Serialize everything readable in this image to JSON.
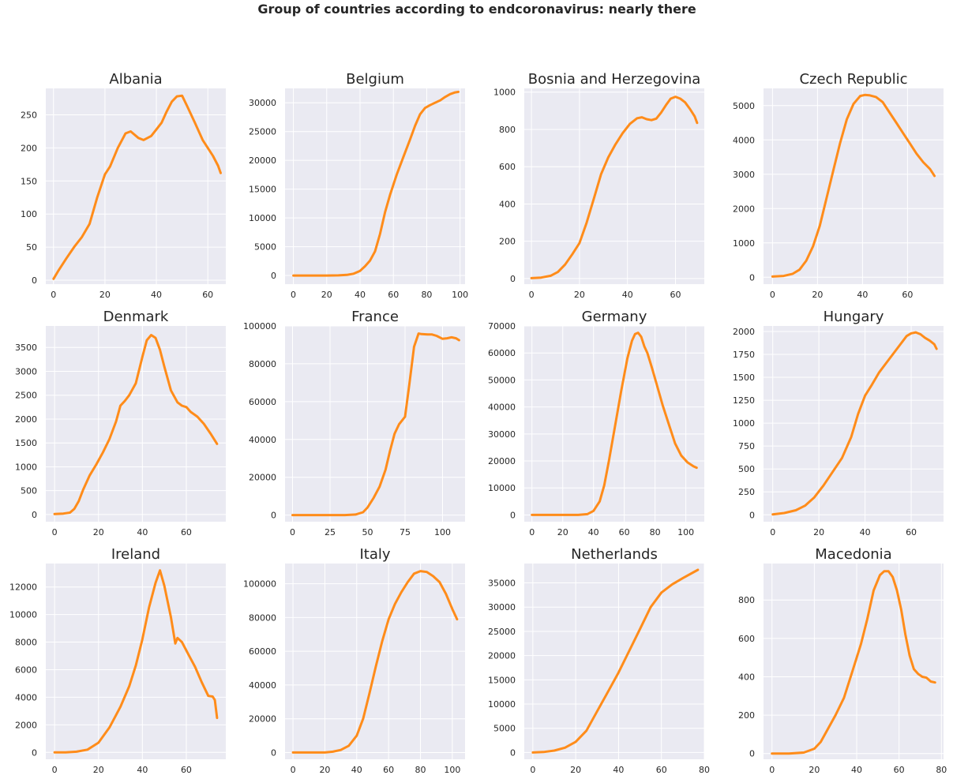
{
  "figure": {
    "title": "Group of countries according to endcoronavirus: nearly there",
    "background": "#ffffff",
    "axes_background": "#eaeaf2",
    "grid_color": "#ffffff",
    "line_color": "#ff8c1a"
  },
  "chart_data": [
    {
      "type": "line",
      "title": "Albania",
      "xlim": [
        -3,
        67
      ],
      "ylim": [
        -6,
        290
      ],
      "xticks": [
        0,
        20,
        40,
        60
      ],
      "yticks": [
        0,
        50,
        100,
        150,
        200,
        250
      ],
      "x": [
        0,
        2,
        5,
        8,
        11,
        14,
        17,
        20,
        22,
        25,
        28,
        30,
        33,
        35,
        38,
        40,
        42,
        44,
        46,
        48,
        50,
        52,
        55,
        58,
        60,
        62,
        64,
        65
      ],
      "y": [
        2,
        15,
        33,
        50,
        65,
        85,
        125,
        160,
        172,
        200,
        222,
        225,
        215,
        212,
        218,
        228,
        238,
        255,
        270,
        278,
        279,
        263,
        238,
        212,
        200,
        188,
        173,
        162
      ]
    },
    {
      "type": "line",
      "title": "Belgium",
      "xlim": [
        -5,
        103
      ],
      "ylim": [
        -1500,
        32500
      ],
      "xticks": [
        0,
        20,
        40,
        60,
        80,
        100
      ],
      "yticks": [
        0,
        5000,
        10000,
        15000,
        20000,
        25000,
        30000
      ],
      "x": [
        0,
        20,
        27,
        32,
        36,
        40,
        43,
        46,
        49,
        52,
        55,
        58,
        62,
        66,
        70,
        73,
        76,
        79,
        82,
        85,
        88,
        91,
        94,
        97,
        99
      ],
      "y": [
        0,
        0,
        20,
        100,
        300,
        800,
        1600,
        2600,
        4200,
        7200,
        11000,
        14000,
        17500,
        20600,
        23600,
        26000,
        28000,
        29100,
        29600,
        30000,
        30400,
        31000,
        31500,
        31800,
        31900
      ]
    },
    {
      "type": "line",
      "title": "Bosnia and Herzegovina",
      "xlim": [
        -3,
        72
      ],
      "ylim": [
        -30,
        1020
      ],
      "xticks": [
        0,
        20,
        40,
        60
      ],
      "yticks": [
        0,
        200,
        400,
        600,
        800,
        1000
      ],
      "x": [
        0,
        4,
        8,
        11,
        14,
        17,
        20,
        23,
        26,
        29,
        32,
        35,
        38,
        41,
        44,
        46,
        48,
        50,
        52,
        54,
        56,
        58,
        60,
        62,
        64,
        66,
        68,
        69
      ],
      "y": [
        2,
        5,
        15,
        35,
        75,
        130,
        190,
        300,
        430,
        560,
        650,
        720,
        780,
        830,
        860,
        865,
        855,
        850,
        858,
        890,
        930,
        965,
        975,
        965,
        945,
        910,
        870,
        835
      ]
    },
    {
      "type": "line",
      "title": "Czech Republic",
      "xlim": [
        -4,
        76
      ],
      "ylim": [
        -200,
        5500
      ],
      "xticks": [
        0,
        20,
        40,
        60
      ],
      "yticks": [
        0,
        1000,
        2000,
        3000,
        4000,
        5000
      ],
      "x": [
        0,
        5,
        9,
        12,
        15,
        18,
        21,
        24,
        27,
        30,
        33,
        36,
        39,
        41,
        43,
        46,
        49,
        52,
        55,
        58,
        61,
        64,
        67,
        70,
        72
      ],
      "y": [
        20,
        40,
        100,
        220,
        480,
        900,
        1500,
        2300,
        3100,
        3900,
        4600,
        5050,
        5280,
        5310,
        5300,
        5250,
        5100,
        4800,
        4500,
        4200,
        3900,
        3600,
        3350,
        3150,
        2950
      ]
    },
    {
      "type": "line",
      "title": "Denmark",
      "xlim": [
        -4,
        78
      ],
      "ylim": [
        -150,
        3950
      ],
      "xticks": [
        0,
        20,
        40,
        60
      ],
      "yticks": [
        0,
        500,
        1000,
        1500,
        2000,
        2500,
        3000,
        3500
      ],
      "x": [
        0,
        4,
        7,
        9,
        11,
        13,
        16,
        19,
        22,
        25,
        28,
        30,
        32,
        34,
        37,
        40,
        42,
        44,
        46,
        48,
        50,
        53,
        56,
        58,
        60,
        62,
        65,
        68,
        71,
        74
      ],
      "y": [
        10,
        20,
        40,
        120,
        280,
        520,
        820,
        1050,
        1300,
        1580,
        1950,
        2280,
        2380,
        2500,
        2750,
        3300,
        3650,
        3760,
        3700,
        3450,
        3100,
        2600,
        2350,
        2280,
        2250,
        2150,
        2050,
        1900,
        1700,
        1480
      ]
    },
    {
      "type": "line",
      "title": "France",
      "xlim": [
        -5,
        115
      ],
      "ylim": [
        -3500,
        100000
      ],
      "xticks": [
        0,
        25,
        50,
        75,
        100
      ],
      "yticks": [
        0,
        20000,
        40000,
        60000,
        80000,
        100000
      ],
      "x": [
        0,
        35,
        42,
        47,
        50,
        54,
        58,
        62,
        65,
        68,
        71,
        75,
        78,
        81,
        84,
        86,
        90,
        93,
        96,
        100,
        103,
        106,
        109,
        111
      ],
      "y": [
        0,
        0,
        300,
        1500,
        4000,
        9000,
        15000,
        24000,
        34000,
        43000,
        48000,
        52000,
        70000,
        89000,
        96000,
        95700,
        95500,
        95500,
        94800,
        93200,
        93500,
        94000,
        93500,
        92500
      ]
    },
    {
      "type": "line",
      "title": "Germany",
      "xlim": [
        -5,
        112
      ],
      "ylim": [
        -2500,
        70000
      ],
      "xticks": [
        0,
        20,
        40,
        60,
        80,
        100
      ],
      "yticks": [
        0,
        10000,
        20000,
        30000,
        40000,
        50000,
        60000,
        70000
      ],
      "x": [
        0,
        30,
        36,
        40,
        44,
        47,
        50,
        54,
        58,
        62,
        65,
        67,
        69,
        71,
        73,
        75,
        78,
        81,
        85,
        89,
        93,
        97,
        101,
        105,
        107
      ],
      "y": [
        0,
        0,
        300,
        1500,
        5000,
        11000,
        20000,
        33000,
        46000,
        58000,
        64500,
        67000,
        67500,
        66000,
        62500,
        60000,
        54500,
        48500,
        40500,
        33500,
        26500,
        22000,
        19500,
        18000,
        17500
      ]
    },
    {
      "type": "line",
      "title": "Hungary",
      "xlim": [
        -4,
        74
      ],
      "ylim": [
        -75,
        2060
      ],
      "xticks": [
        0,
        20,
        40,
        60
      ],
      "yticks": [
        0,
        250,
        500,
        750,
        1000,
        1250,
        1500,
        1750,
        2000
      ],
      "x": [
        0,
        5,
        10,
        14,
        18,
        22,
        26,
        30,
        34,
        37,
        40,
        43,
        46,
        49,
        52,
        55,
        58,
        60,
        62,
        64,
        66,
        68,
        70,
        71
      ],
      "y": [
        5,
        20,
        50,
        100,
        190,
        320,
        470,
        620,
        850,
        1100,
        1300,
        1420,
        1550,
        1650,
        1750,
        1850,
        1950,
        1980,
        1990,
        1970,
        1930,
        1900,
        1860,
        1810
      ]
    },
    {
      "type": "line",
      "title": "Ireland",
      "xlim": [
        -4,
        78
      ],
      "ylim": [
        -500,
        13700
      ],
      "xticks": [
        0,
        20,
        40,
        60
      ],
      "yticks": [
        0,
        2000,
        4000,
        6000,
        8000,
        10000,
        12000
      ],
      "x": [
        0,
        5,
        10,
        15,
        20,
        25,
        30,
        34,
        37,
        40,
        43,
        46,
        48,
        50,
        53,
        55,
        56,
        58,
        61,
        64,
        67,
        70,
        72,
        73,
        74
      ],
      "y": [
        0,
        0,
        50,
        200,
        700,
        1800,
        3300,
        4800,
        6300,
        8200,
        10500,
        12300,
        13200,
        12100,
        9800,
        7900,
        8300,
        8000,
        7100,
        6200,
        5100,
        4100,
        4050,
        3800,
        2500
      ]
    },
    {
      "type": "line",
      "title": "Italy",
      "xlim": [
        -5,
        108
      ],
      "ylim": [
        -4000,
        112000
      ],
      "xticks": [
        0,
        20,
        40,
        60,
        80,
        100
      ],
      "yticks": [
        0,
        20000,
        40000,
        60000,
        80000,
        100000
      ],
      "x": [
        0,
        20,
        25,
        30,
        35,
        40,
        44,
        48,
        52,
        56,
        60,
        64,
        68,
        72,
        76,
        80,
        84,
        88,
        92,
        96,
        100,
        103
      ],
      "y": [
        0,
        0,
        500,
        1500,
        4000,
        10000,
        20000,
        35000,
        51000,
        66000,
        79000,
        88000,
        95000,
        101000,
        106000,
        107500,
        107000,
        104500,
        101000,
        94000,
        85000,
        79000
      ]
    },
    {
      "type": "line",
      "title": "Netherlands",
      "xlim": [
        -4,
        80
      ],
      "ylim": [
        -1400,
        39000
      ],
      "xticks": [
        0,
        20,
        40,
        60,
        80
      ],
      "yticks": [
        0,
        5000,
        10000,
        15000,
        20000,
        25000,
        30000,
        35000
      ],
      "x": [
        0,
        5,
        10,
        15,
        20,
        25,
        30,
        35,
        40,
        45,
        50,
        55,
        60,
        65,
        70,
        75,
        77
      ],
      "y": [
        0,
        100,
        400,
        1000,
        2200,
        4500,
        8500,
        12500,
        16500,
        21000,
        25500,
        30000,
        33000,
        34700,
        36000,
        37200,
        37700
      ]
    },
    {
      "type": "line",
      "title": "Macedonia",
      "xlim": [
        -4,
        81
      ],
      "ylim": [
        -30,
        990
      ],
      "xticks": [
        0,
        20,
        40,
        60,
        80
      ],
      "yticks": [
        0,
        200,
        400,
        600,
        800
      ],
      "x": [
        0,
        8,
        15,
        20,
        23,
        26,
        30,
        34,
        38,
        42,
        45,
        48,
        51,
        53,
        55,
        57,
        59,
        61,
        63,
        65,
        67,
        69,
        71,
        73,
        75,
        77
      ],
      "y": [
        0,
        0,
        5,
        25,
        60,
        120,
        200,
        290,
        430,
        570,
        700,
        850,
        930,
        950,
        950,
        920,
        850,
        750,
        620,
        510,
        440,
        415,
        400,
        395,
        375,
        370
      ]
    }
  ]
}
